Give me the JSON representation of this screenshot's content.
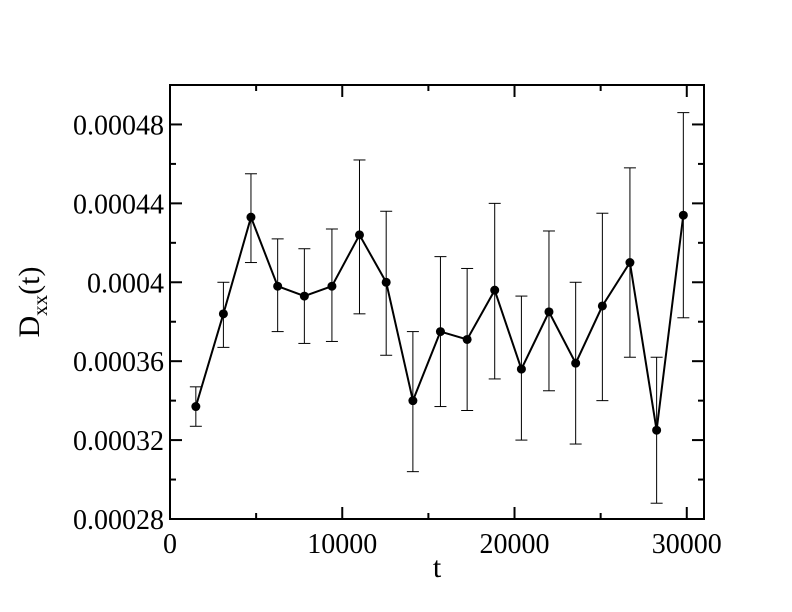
{
  "chart_data": {
    "type": "scatter",
    "title": "",
    "xlabel": "t",
    "ylabel_main": "D",
    "ylabel_sub": "xx",
    "ylabel_suffix": "(t)",
    "xlim": [
      0,
      31000
    ],
    "ylim": [
      0.00028,
      0.0005
    ],
    "x_ticks": [
      0,
      10000,
      20000,
      30000
    ],
    "x_tick_labels": [
      "0",
      "10000",
      "20000",
      "30000"
    ],
    "y_ticks": [
      0.00028,
      0.00032,
      0.00036,
      0.0004,
      0.00044,
      0.00048
    ],
    "y_tick_labels": [
      "0.00028",
      "0.00032",
      "0.00036",
      "0.0004",
      "0.00044",
      "0.00048"
    ],
    "grid": false,
    "legend": "none",
    "series": [
      {
        "line_color": "#000000",
        "marker": "circle",
        "x": [
          1500,
          3100,
          4700,
          6250,
          7800,
          9400,
          11000,
          12550,
          14100,
          15700,
          17250,
          18850,
          20400,
          22000,
          23550,
          25100,
          26700,
          28250,
          29800
        ],
        "y": [
          0.000337,
          0.000384,
          0.000433,
          0.000398,
          0.000393,
          0.000398,
          0.000424,
          0.0004,
          0.00034,
          0.000375,
          0.000371,
          0.000396,
          0.000356,
          0.000385,
          0.000359,
          0.000388,
          0.00041,
          0.000325,
          0.000434
        ],
        "err_low": [
          0.000327,
          0.000367,
          0.00041,
          0.000375,
          0.000369,
          0.00037,
          0.000384,
          0.000363,
          0.000304,
          0.000337,
          0.000335,
          0.000351,
          0.00032,
          0.000345,
          0.000318,
          0.00034,
          0.000362,
          0.000288,
          0.000382
        ],
        "err_high": [
          0.000347,
          0.0004,
          0.000455,
          0.000422,
          0.000417,
          0.000427,
          0.000462,
          0.000436,
          0.000375,
          0.000413,
          0.000407,
          0.00044,
          0.000393,
          0.000426,
          0.0004,
          0.000435,
          0.000458,
          0.000362,
          0.000486
        ]
      }
    ]
  }
}
